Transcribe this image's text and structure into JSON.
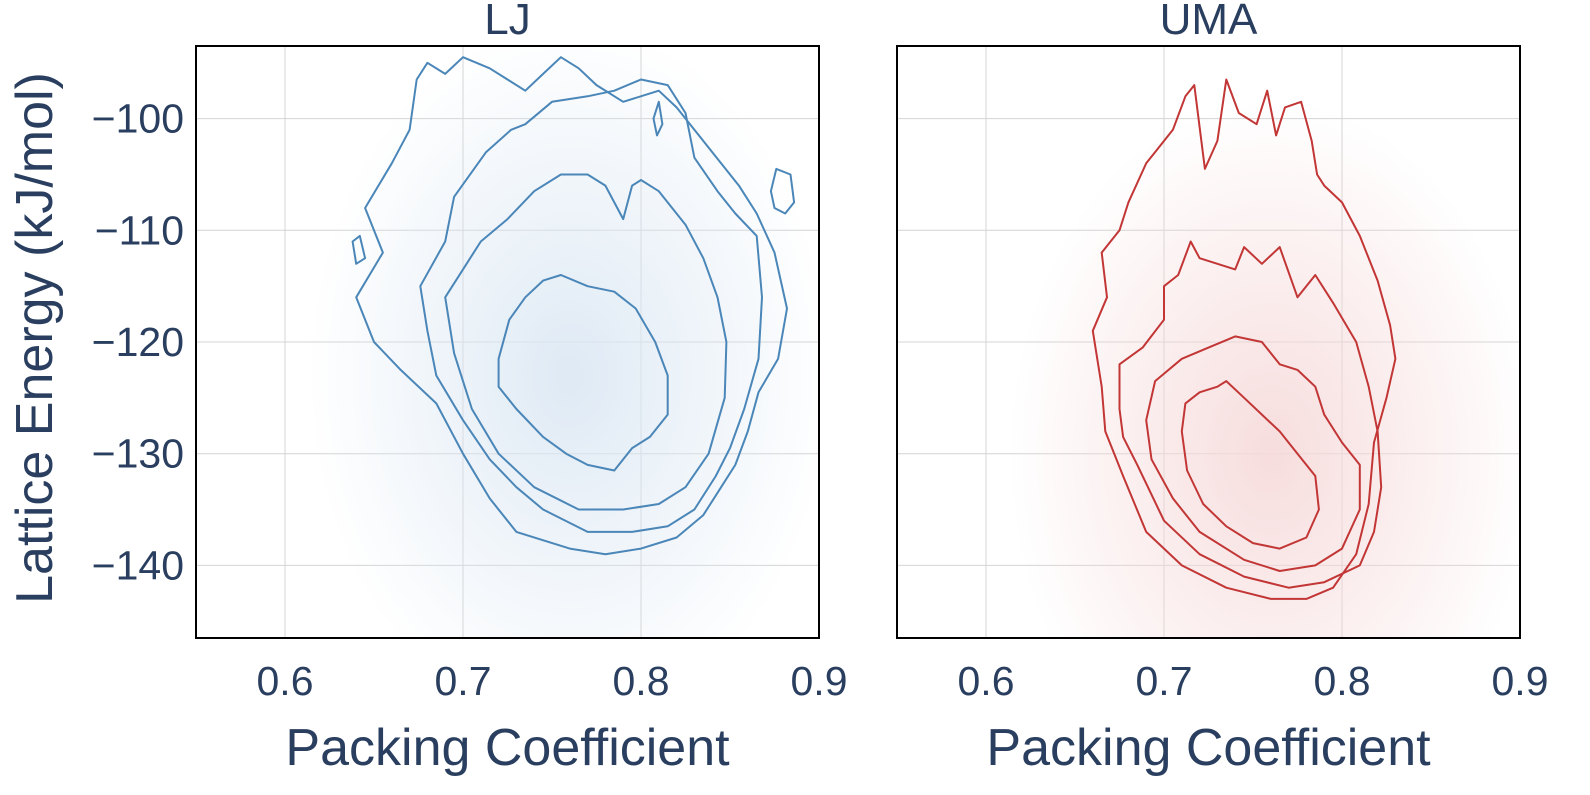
{
  "chart_data": [
    {
      "type": "contour",
      "title": "LJ",
      "xlabel": "Packing Coefficient",
      "ylabel": "Lattice Energy (kJ/mol)",
      "xlim": [
        0.55,
        0.9
      ],
      "ylim": [
        -146.5,
        -93.5
      ],
      "xticks": [
        0.6,
        0.7,
        0.8,
        0.9
      ],
      "yticks": [
        -100,
        -110,
        -120,
        -130,
        -140
      ],
      "x_tick_labels": [
        "0.6",
        "0.7",
        "0.8",
        "0.9"
      ],
      "y_tick_labels": [
        "−100",
        "−110",
        "−120",
        "−130",
        "−140"
      ],
      "grid": true,
      "color": "#4a86b8",
      "fill_color": "#dbe7f3",
      "density_peak": {
        "x": 0.76,
        "y": -123
      },
      "contours": [
        [
          [
            0.72,
            -121.5
          ],
          [
            0.726,
            -118
          ],
          [
            0.735,
            -116
          ],
          [
            0.745,
            -114.5
          ],
          [
            0.755,
            -114
          ],
          [
            0.77,
            -115
          ],
          [
            0.785,
            -115.5
          ],
          [
            0.797,
            -117
          ],
          [
            0.808,
            -120
          ],
          [
            0.815,
            -123
          ],
          [
            0.815,
            -126.5
          ],
          [
            0.805,
            -128.5
          ],
          [
            0.795,
            -129.5
          ],
          [
            0.785,
            -131.5
          ],
          [
            0.77,
            -131
          ],
          [
            0.758,
            -130
          ],
          [
            0.745,
            -128.5
          ],
          [
            0.73,
            -126
          ],
          [
            0.72,
            -124
          ]
        ],
        [
          [
            0.69,
            -116
          ],
          [
            0.7,
            -113.5
          ],
          [
            0.71,
            -111
          ],
          [
            0.725,
            -109
          ],
          [
            0.74,
            -106.5
          ],
          [
            0.755,
            -105
          ],
          [
            0.77,
            -105
          ],
          [
            0.78,
            -106
          ],
          [
            0.79,
            -109
          ],
          [
            0.795,
            -106
          ],
          [
            0.8,
            -105.5
          ],
          [
            0.81,
            -106.5
          ],
          [
            0.825,
            -109.5
          ],
          [
            0.835,
            -112.5
          ],
          [
            0.843,
            -116
          ],
          [
            0.848,
            -120
          ],
          [
            0.847,
            -125
          ],
          [
            0.838,
            -130
          ],
          [
            0.825,
            -133
          ],
          [
            0.81,
            -134.5
          ],
          [
            0.79,
            -135
          ],
          [
            0.765,
            -135
          ],
          [
            0.74,
            -133
          ],
          [
            0.72,
            -130
          ],
          [
            0.705,
            -126
          ],
          [
            0.695,
            -121
          ]
        ],
        [
          [
            0.68,
            -119
          ],
          [
            0.676,
            -115
          ],
          [
            0.69,
            -111
          ],
          [
            0.695,
            -107
          ],
          [
            0.713,
            -103
          ],
          [
            0.727,
            -101
          ],
          [
            0.735,
            -100.5
          ],
          [
            0.75,
            -98.5
          ],
          [
            0.77,
            -98
          ],
          [
            0.785,
            -97.5
          ],
          [
            0.8,
            -96.5
          ],
          [
            0.815,
            -97
          ],
          [
            0.825,
            -99.5
          ],
          [
            0.83,
            -103.5
          ],
          [
            0.843,
            -106.5
          ],
          [
            0.853,
            -108.5
          ],
          [
            0.865,
            -110.5
          ],
          [
            0.868,
            -116
          ],
          [
            0.866,
            -121.5
          ],
          [
            0.858,
            -126
          ],
          [
            0.85,
            -129.5
          ],
          [
            0.842,
            -132
          ],
          [
            0.83,
            -135
          ],
          [
            0.815,
            -136.5
          ],
          [
            0.795,
            -137
          ],
          [
            0.77,
            -137
          ],
          [
            0.745,
            -135
          ],
          [
            0.73,
            -133
          ],
          [
            0.715,
            -130.5
          ],
          [
            0.7,
            -127
          ],
          [
            0.685,
            -123
          ]
        ],
        [
          [
            0.65,
            -120
          ],
          [
            0.64,
            -116
          ],
          [
            0.655,
            -112
          ],
          [
            0.645,
            -108
          ],
          [
            0.66,
            -104
          ],
          [
            0.67,
            -101
          ],
          [
            0.674,
            -96.5
          ],
          [
            0.68,
            -95
          ],
          [
            0.69,
            -96
          ],
          [
            0.7,
            -94.5
          ],
          [
            0.715,
            -95.5
          ],
          [
            0.725,
            -96.5
          ],
          [
            0.735,
            -97.5
          ],
          [
            0.745,
            -96
          ],
          [
            0.755,
            -94.5
          ],
          [
            0.765,
            -95.5
          ],
          [
            0.775,
            -97
          ],
          [
            0.79,
            -98.5
          ],
          [
            0.81,
            -97.5
          ],
          [
            0.82,
            -99
          ],
          [
            0.83,
            -101
          ],
          [
            0.84,
            -103
          ],
          [
            0.855,
            -106
          ],
          [
            0.865,
            -108.5
          ],
          [
            0.875,
            -112
          ],
          [
            0.882,
            -117
          ],
          [
            0.877,
            -121.5
          ],
          [
            0.866,
            -124.5
          ],
          [
            0.86,
            -128
          ],
          [
            0.853,
            -131
          ],
          [
            0.845,
            -133
          ],
          [
            0.835,
            -135.5
          ],
          [
            0.82,
            -137.5
          ],
          [
            0.8,
            -138.5
          ],
          [
            0.78,
            -139
          ],
          [
            0.76,
            -138.5
          ],
          [
            0.73,
            -137
          ],
          [
            0.715,
            -134
          ],
          [
            0.7,
            -130
          ],
          [
            0.685,
            -125.5
          ],
          [
            0.665,
            -122.5
          ]
        ],
        [
          [
            0.873,
            -106.5
          ],
          [
            0.876,
            -104.5
          ],
          [
            0.884,
            -105
          ],
          [
            0.886,
            -107.5
          ],
          [
            0.881,
            -108.5
          ],
          [
            0.875,
            -108
          ]
        ],
        [
          [
            0.807,
            -100
          ],
          [
            0.81,
            -98.5
          ],
          [
            0.812,
            -100.5
          ],
          [
            0.809,
            -101.5
          ]
        ],
        [
          [
            0.638,
            -111
          ],
          [
            0.642,
            -110.5
          ],
          [
            0.645,
            -112.5
          ],
          [
            0.64,
            -113
          ]
        ]
      ]
    },
    {
      "type": "contour",
      "title": "UMA",
      "xlabel": "Packing Coefficient",
      "xlim": [
        0.55,
        0.9
      ],
      "ylim": [
        -146.5,
        -93.5
      ],
      "xticks": [
        0.6,
        0.7,
        0.8,
        0.9
      ],
      "yticks": [
        -100,
        -110,
        -120,
        -130,
        -140
      ],
      "x_tick_labels": [
        "0.6",
        "0.7",
        "0.8",
        "0.9"
      ],
      "grid": true,
      "color": "#c23636",
      "fill_color": "#f6d9d9",
      "density_peak": {
        "x": 0.76,
        "y": -130
      },
      "contours": [
        [
          [
            0.71,
            -128
          ],
          [
            0.712,
            -125.5
          ],
          [
            0.72,
            -124.5
          ],
          [
            0.73,
            -124
          ],
          [
            0.735,
            -123.5
          ],
          [
            0.745,
            -125
          ],
          [
            0.755,
            -126.5
          ],
          [
            0.765,
            -128
          ],
          [
            0.775,
            -130
          ],
          [
            0.785,
            -132
          ],
          [
            0.787,
            -135
          ],
          [
            0.78,
            -137.5
          ],
          [
            0.765,
            -138.5
          ],
          [
            0.75,
            -138
          ],
          [
            0.735,
            -136.5
          ],
          [
            0.722,
            -134.5
          ],
          [
            0.713,
            -131.5
          ]
        ],
        [
          [
            0.69,
            -127
          ],
          [
            0.695,
            -123.5
          ],
          [
            0.71,
            -121.5
          ],
          [
            0.725,
            -120.5
          ],
          [
            0.74,
            -119.5
          ],
          [
            0.755,
            -120
          ],
          [
            0.765,
            -122
          ],
          [
            0.775,
            -122.5
          ],
          [
            0.785,
            -124
          ],
          [
            0.79,
            -126.5
          ],
          [
            0.8,
            -129
          ],
          [
            0.81,
            -131
          ],
          [
            0.81,
            -135
          ],
          [
            0.8,
            -138.5
          ],
          [
            0.785,
            -140
          ],
          [
            0.765,
            -140.5
          ],
          [
            0.745,
            -139.5
          ],
          [
            0.72,
            -137
          ],
          [
            0.705,
            -134
          ],
          [
            0.693,
            -130.5
          ]
        ],
        [
          [
            0.675,
            -126
          ],
          [
            0.675,
            -122
          ],
          [
            0.688,
            -120.5
          ],
          [
            0.7,
            -118
          ],
          [
            0.7,
            -115
          ],
          [
            0.708,
            -114
          ],
          [
            0.715,
            -111
          ],
          [
            0.72,
            -112.5
          ],
          [
            0.73,
            -113
          ],
          [
            0.74,
            -113.5
          ],
          [
            0.745,
            -111.5
          ],
          [
            0.755,
            -113
          ],
          [
            0.765,
            -111.5
          ],
          [
            0.775,
            -116
          ],
          [
            0.785,
            -114
          ],
          [
            0.795,
            -116.5
          ],
          [
            0.808,
            -120
          ],
          [
            0.815,
            -124
          ],
          [
            0.82,
            -128
          ],
          [
            0.822,
            -133
          ],
          [
            0.818,
            -137
          ],
          [
            0.81,
            -140
          ],
          [
            0.79,
            -141.5
          ],
          [
            0.77,
            -142
          ],
          [
            0.745,
            -141
          ],
          [
            0.72,
            -139
          ],
          [
            0.7,
            -136
          ],
          [
            0.685,
            -131
          ],
          [
            0.677,
            -128.5
          ]
        ],
        [
          [
            0.665,
            -124
          ],
          [
            0.66,
            -119
          ],
          [
            0.668,
            -116
          ],
          [
            0.665,
            -112
          ],
          [
            0.675,
            -110
          ],
          [
            0.68,
            -107.5
          ],
          [
            0.69,
            -104
          ],
          [
            0.695,
            -103
          ],
          [
            0.705,
            -101
          ],
          [
            0.712,
            -98
          ],
          [
            0.717,
            -97
          ],
          [
            0.723,
            -104.5
          ],
          [
            0.73,
            -102
          ],
          [
            0.735,
            -96.5
          ],
          [
            0.742,
            -99.5
          ],
          [
            0.752,
            -100.5
          ],
          [
            0.758,
            -97.5
          ],
          [
            0.763,
            -101.5
          ],
          [
            0.768,
            -99
          ],
          [
            0.777,
            -98.5
          ],
          [
            0.783,
            -102
          ],
          [
            0.786,
            -105
          ],
          [
            0.79,
            -106
          ],
          [
            0.8,
            -107.5
          ],
          [
            0.81,
            -110.5
          ],
          [
            0.82,
            -114.5
          ],
          [
            0.827,
            -118.5
          ],
          [
            0.83,
            -121.5
          ],
          [
            0.825,
            -125
          ],
          [
            0.818,
            -129
          ],
          [
            0.815,
            -134.5
          ],
          [
            0.808,
            -139
          ],
          [
            0.795,
            -142
          ],
          [
            0.78,
            -143
          ],
          [
            0.76,
            -143
          ],
          [
            0.735,
            -142
          ],
          [
            0.71,
            -140
          ],
          [
            0.69,
            -137
          ],
          [
            0.677,
            -132
          ],
          [
            0.667,
            -128
          ]
        ]
      ]
    }
  ]
}
